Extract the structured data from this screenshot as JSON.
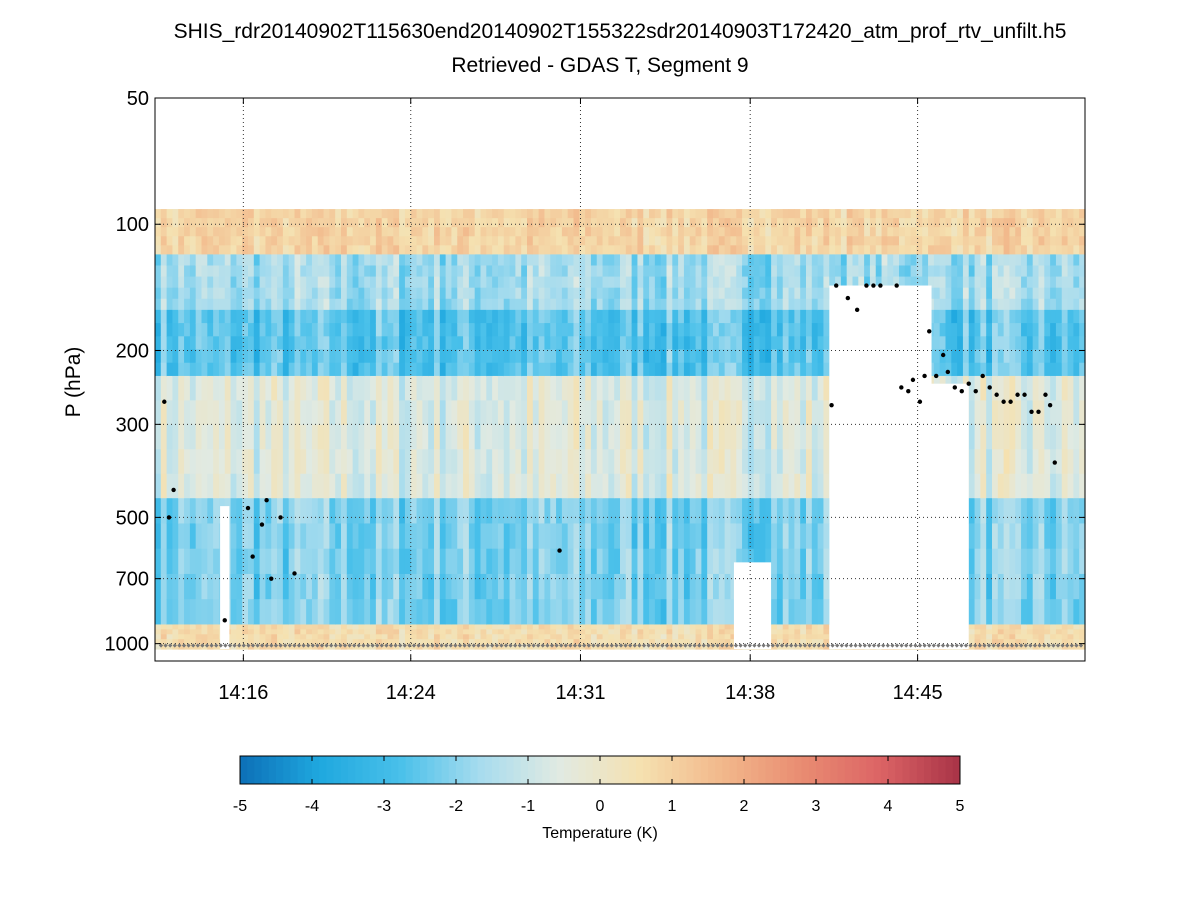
{
  "chart_data": {
    "type": "heatmap",
    "title": "SHIS_rdr20140902T115630end20140902T155322sdr20140903T172420_atm_prof_rtv_unfilt.h5",
    "subtitle": "Retrieved - GDAS T, Segment 9",
    "ylabel": "P (hPa)",
    "y_scale": "log",
    "y_reversed": true,
    "ylim": [
      50,
      1100
    ],
    "y_ticks": [
      50,
      100,
      200,
      300,
      500,
      700,
      1000
    ],
    "x_unit": "minutes of day (14:13 - 14:53)",
    "xlim": [
      853.0,
      893.0
    ],
    "x_ticks": [
      {
        "value": 856.8,
        "label": "14:16"
      },
      {
        "value": 864.0,
        "label": "14:24"
      },
      {
        "value": 871.3,
        "label": "14:31"
      },
      {
        "value": 878.6,
        "label": "14:38"
      },
      {
        "value": 885.8,
        "label": "14:45"
      }
    ],
    "grid": true,
    "colorbar": {
      "label": "Temperature (K)",
      "range": [
        -5,
        5
      ],
      "ticks": [
        -5,
        -4,
        -3,
        -2,
        -1,
        0,
        1,
        2,
        3,
        4,
        5
      ],
      "colors": [
        "#0c6fb7",
        "#1fa8df",
        "#49c0ea",
        "#a7dcee",
        "#e1eae2",
        "#f5e1b0",
        "#f2b98c",
        "#e98d72",
        "#dc6465",
        "#a83347"
      ]
    },
    "value_layers_K": [
      {
        "p_top": 92,
        "p_bottom": 118,
        "value": 0.9
      },
      {
        "p_top": 118,
        "p_bottom": 160,
        "value": -1.7
      },
      {
        "p_top": 160,
        "p_bottom": 230,
        "value": -2.7
      },
      {
        "p_top": 230,
        "p_bottom": 450,
        "value": -0.6
      },
      {
        "p_top": 450,
        "p_bottom": 900,
        "value": -2.2
      },
      {
        "p_top": 900,
        "p_bottom": 1030,
        "value": 0.6
      }
    ],
    "no_data_regions": [
      {
        "x_start": 877.9,
        "x_end": 879.5,
        "p_top": 640,
        "p_bottom": 1030
      },
      {
        "x_start": 882.0,
        "x_end": 886.4,
        "p_top": 140,
        "p_bottom": 1030
      },
      {
        "x_start": 882.5,
        "x_end": 888.0,
        "p_top": 240,
        "p_bottom": 1030
      },
      {
        "x_start": 855.8,
        "x_end": 856.2,
        "p_top": 470,
        "p_bottom": 1030
      }
    ],
    "cloud_top_markers_hPa": [
      {
        "x": 853.4,
        "p": 265
      },
      {
        "x": 853.6,
        "p": 500
      },
      {
        "x": 853.8,
        "p": 430
      },
      {
        "x": 856.0,
        "p": 880
      },
      {
        "x": 857.0,
        "p": 475
      },
      {
        "x": 857.2,
        "p": 620
      },
      {
        "x": 857.6,
        "p": 520
      },
      {
        "x": 857.8,
        "p": 455
      },
      {
        "x": 858.0,
        "p": 700
      },
      {
        "x": 858.4,
        "p": 500
      },
      {
        "x": 859.0,
        "p": 680
      },
      {
        "x": 870.4,
        "p": 600
      },
      {
        "x": 882.1,
        "p": 270
      },
      {
        "x": 882.3,
        "p": 140
      },
      {
        "x": 882.8,
        "p": 150
      },
      {
        "x": 883.2,
        "p": 160
      },
      {
        "x": 883.6,
        "p": 140
      },
      {
        "x": 883.9,
        "p": 140
      },
      {
        "x": 884.2,
        "p": 140
      },
      {
        "x": 884.9,
        "p": 140
      },
      {
        "x": 885.1,
        "p": 245
      },
      {
        "x": 885.4,
        "p": 250
      },
      {
        "x": 885.6,
        "p": 235
      },
      {
        "x": 885.9,
        "p": 265
      },
      {
        "x": 886.1,
        "p": 230
      },
      {
        "x": 886.3,
        "p": 180
      },
      {
        "x": 886.6,
        "p": 230
      },
      {
        "x": 886.9,
        "p": 205
      },
      {
        "x": 887.1,
        "p": 225
      },
      {
        "x": 887.4,
        "p": 245
      },
      {
        "x": 887.7,
        "p": 250
      },
      {
        "x": 888.0,
        "p": 240
      },
      {
        "x": 888.3,
        "p": 250
      },
      {
        "x": 888.6,
        "p": 230
      },
      {
        "x": 888.9,
        "p": 245
      },
      {
        "x": 889.2,
        "p": 255
      },
      {
        "x": 889.5,
        "p": 265
      },
      {
        "x": 889.8,
        "p": 265
      },
      {
        "x": 890.1,
        "p": 255
      },
      {
        "x": 890.4,
        "p": 255
      },
      {
        "x": 890.7,
        "p": 280
      },
      {
        "x": 891.0,
        "p": 280
      },
      {
        "x": 891.3,
        "p": 255
      },
      {
        "x": 891.5,
        "p": 270
      },
      {
        "x": 891.7,
        "p": 370
      }
    ],
    "surface_marker_pressure_hPa": 1010
  }
}
